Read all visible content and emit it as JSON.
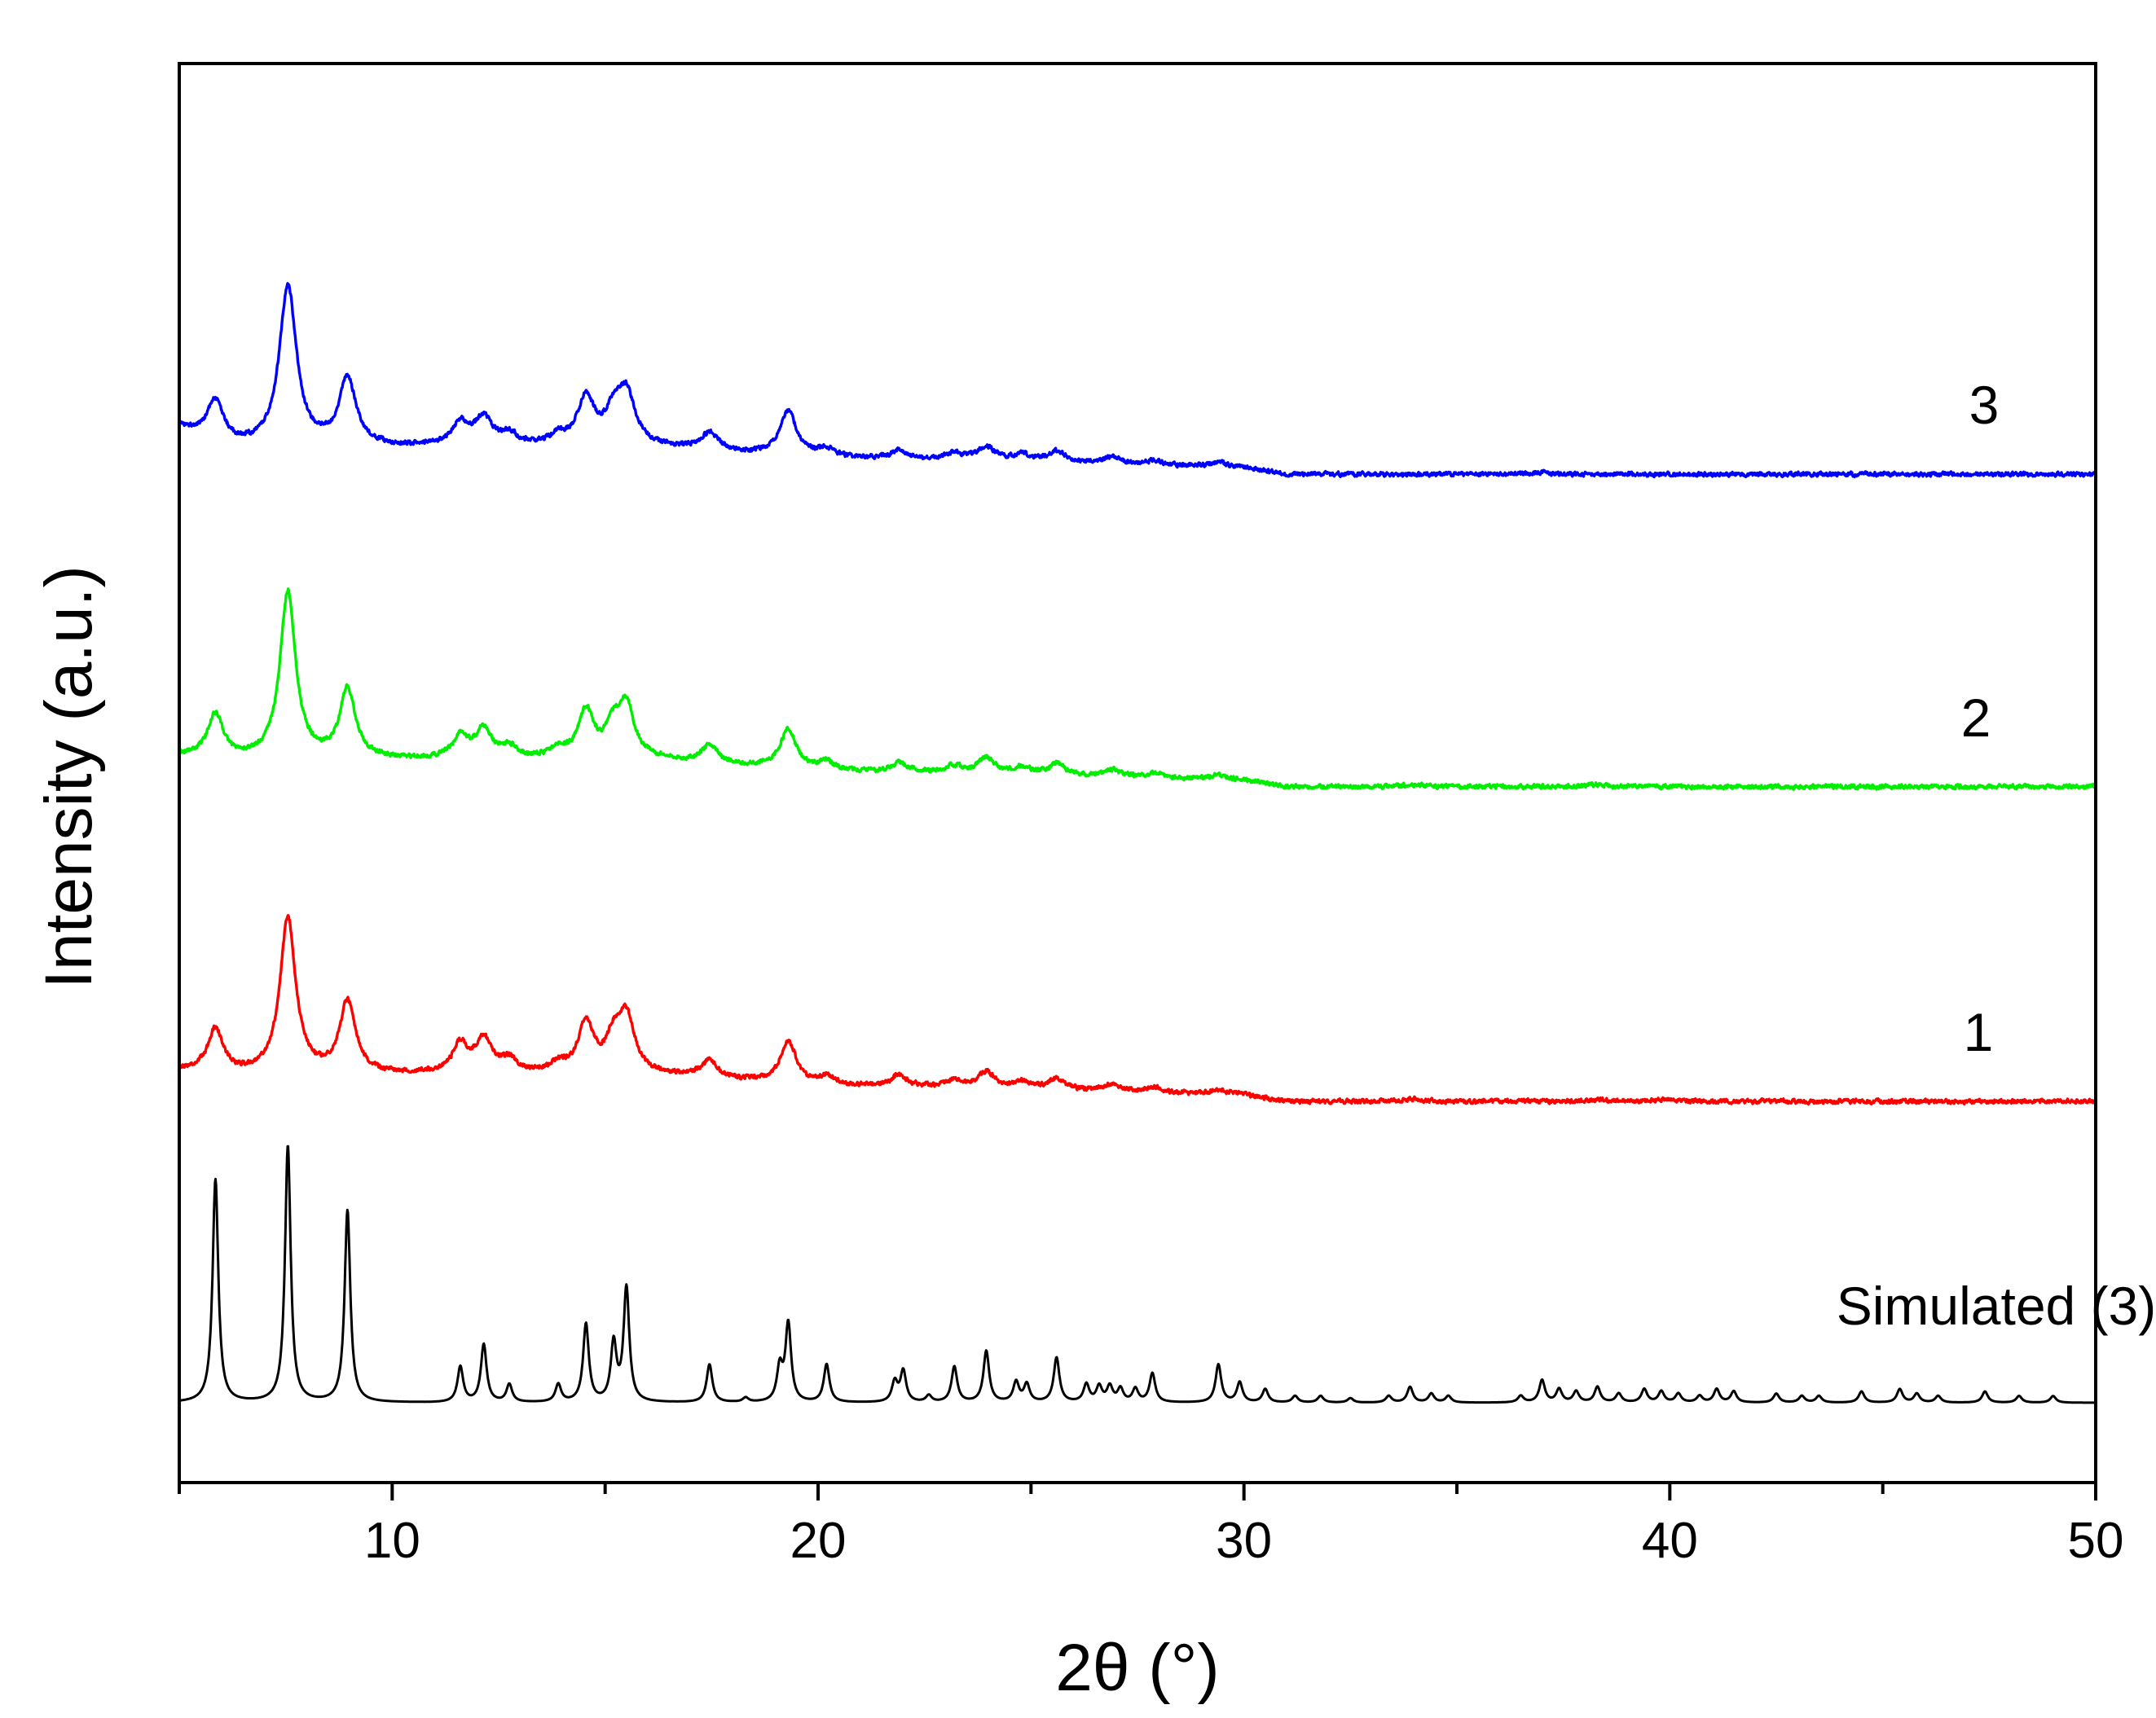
{
  "chart_data": {
    "type": "line",
    "title": "",
    "xlabel": "2θ (°)",
    "ylabel": "Intensity (a.u.)",
    "xlim": [
      5,
      50
    ],
    "xticks": [
      10,
      20,
      30,
      40,
      50
    ],
    "xtick_labels": [
      "10",
      "20",
      "30",
      "40",
      "50"
    ],
    "grid": false,
    "legend": "inline labels at right",
    "series": [
      {
        "name": "Simulated (3)",
        "label": "Simulated (3)",
        "color": "#000000",
        "offset": 0,
        "broadening": 0.08,
        "noise": 0,
        "baseline": [
          [
            5,
            0
          ],
          [
            50,
            0
          ]
        ],
        "peaks": [
          [
            5.85,
            100
          ],
          [
            7.55,
            115
          ],
          [
            8.95,
            86
          ],
          [
            11.6,
            16
          ],
          [
            12.15,
            26
          ],
          [
            12.75,
            8
          ],
          [
            13.9,
            8
          ],
          [
            14.55,
            35
          ],
          [
            15.2,
            26
          ],
          [
            15.5,
            51
          ],
          [
            17.45,
            17
          ],
          [
            18.3,
            2
          ],
          [
            19.1,
            15
          ],
          [
            19.3,
            35
          ],
          [
            20.2,
            17
          ],
          [
            21.8,
            9
          ],
          [
            22.0,
            14
          ],
          [
            22.6,
            3
          ],
          [
            23.2,
            16
          ],
          [
            23.95,
            23
          ],
          [
            24.65,
            9
          ],
          [
            24.9,
            8
          ],
          [
            25.6,
            20
          ],
          [
            26.3,
            8
          ],
          [
            26.6,
            7
          ],
          [
            26.85,
            7
          ],
          [
            27.1,
            6
          ],
          [
            27.45,
            6
          ],
          [
            27.85,
            13
          ],
          [
            29.4,
            17
          ],
          [
            29.9,
            9
          ],
          [
            30.5,
            6
          ],
          [
            31.2,
            3
          ],
          [
            31.8,
            3
          ],
          [
            32.5,
            2
          ],
          [
            33.4,
            3
          ],
          [
            33.9,
            7
          ],
          [
            34.4,
            4
          ],
          [
            34.8,
            3
          ],
          [
            36.5,
            3
          ],
          [
            37.0,
            10
          ],
          [
            37.4,
            6
          ],
          [
            37.8,
            5
          ],
          [
            38.3,
            7
          ],
          [
            38.8,
            4
          ],
          [
            39.4,
            6
          ],
          [
            39.8,
            5
          ],
          [
            40.2,
            4
          ],
          [
            40.7,
            3
          ],
          [
            41.1,
            6
          ],
          [
            41.5,
            5
          ],
          [
            42.5,
            4
          ],
          [
            43.1,
            3
          ],
          [
            43.5,
            3
          ],
          [
            44.5,
            5
          ],
          [
            45.4,
            6
          ],
          [
            45.8,
            4
          ],
          [
            46.3,
            3
          ],
          [
            47.4,
            5
          ],
          [
            48.2,
            3
          ],
          [
            49.0,
            3
          ]
        ]
      },
      {
        "name": "1",
        "label": "1",
        "color": "#ff0000",
        "offset": 135,
        "broadening": 0.22,
        "noise": 1.4,
        "baseline": [
          [
            5,
            14
          ],
          [
            5.9,
            12
          ],
          [
            10,
            12
          ],
          [
            16,
            12
          ],
          [
            20,
            7
          ],
          [
            24,
            6
          ],
          [
            30,
            3
          ],
          [
            31,
            0
          ],
          [
            50,
            0
          ]
        ],
        "peaks": [
          [
            5.85,
            20
          ],
          [
            7.55,
            70
          ],
          [
            8.95,
            32
          ],
          [
            11.6,
            13
          ],
          [
            12.15,
            15
          ],
          [
            12.75,
            6
          ],
          [
            13.9,
            4
          ],
          [
            14.55,
            22
          ],
          [
            15.2,
            14
          ],
          [
            15.5,
            24
          ],
          [
            17.45,
            8
          ],
          [
            19.3,
            19
          ],
          [
            20.2,
            4
          ],
          [
            21.9,
            5
          ],
          [
            23.2,
            3
          ],
          [
            23.95,
            7
          ],
          [
            24.8,
            3
          ],
          [
            25.6,
            5
          ],
          [
            26.9,
            3
          ],
          [
            27.9,
            2
          ],
          [
            29.4,
            2
          ],
          [
            34,
            1
          ],
          [
            38.3,
            1
          ],
          [
            39.8,
            1
          ]
        ]
      },
      {
        "name": "2",
        "label": "2",
        "color": "#00ee00",
        "offset": 276,
        "broadening": 0.22,
        "noise": 1.4,
        "baseline": [
          [
            5,
            14
          ],
          [
            5.9,
            12
          ],
          [
            10,
            12
          ],
          [
            16,
            12
          ],
          [
            20,
            7
          ],
          [
            24,
            6
          ],
          [
            30,
            3
          ],
          [
            31,
            0
          ],
          [
            50,
            0
          ]
        ],
        "peaks": [
          [
            5.85,
            20
          ],
          [
            7.55,
            75
          ],
          [
            8.95,
            31
          ],
          [
            11.6,
            10
          ],
          [
            12.15,
            13
          ],
          [
            12.75,
            5
          ],
          [
            13.9,
            4
          ],
          [
            14.55,
            21
          ],
          [
            15.2,
            13
          ],
          [
            15.5,
            22
          ],
          [
            17.45,
            8
          ],
          [
            19.3,
            18
          ],
          [
            20.2,
            4
          ],
          [
            21.9,
            4
          ],
          [
            23.2,
            3
          ],
          [
            23.95,
            7
          ],
          [
            24.8,
            3
          ],
          [
            25.6,
            5
          ],
          [
            26.9,
            3
          ],
          [
            27.9,
            2
          ],
          [
            29.4,
            2
          ],
          [
            34,
            1
          ],
          [
            38.3,
            1
          ]
        ]
      },
      {
        "name": "3",
        "label": "3",
        "color": "#0000ff",
        "offset": 416,
        "broadening": 0.24,
        "noise": 1.4,
        "baseline": [
          [
            5,
            21
          ],
          [
            5.9,
            12
          ],
          [
            10,
            12
          ],
          [
            16,
            12
          ],
          [
            20,
            7
          ],
          [
            24,
            6
          ],
          [
            30,
            3
          ],
          [
            31,
            0
          ],
          [
            50,
            0
          ]
        ],
        "peaks": [
          [
            5.85,
            20
          ],
          [
            7.55,
            72
          ],
          [
            8.95,
            30
          ],
          [
            11.6,
            10
          ],
          [
            12.15,
            12
          ],
          [
            12.75,
            5
          ],
          [
            13.9,
            4
          ],
          [
            14.55,
            21
          ],
          [
            15.2,
            13
          ],
          [
            15.5,
            22
          ],
          [
            17.45,
            8
          ],
          [
            19.3,
            20
          ],
          [
            20.2,
            4
          ],
          [
            21.9,
            4
          ],
          [
            23.2,
            3
          ],
          [
            23.95,
            6
          ],
          [
            24.8,
            3
          ],
          [
            25.6,
            5
          ],
          [
            26.9,
            3
          ],
          [
            27.9,
            2
          ],
          [
            29.4,
            2
          ],
          [
            37,
            1
          ]
        ]
      }
    ]
  }
}
